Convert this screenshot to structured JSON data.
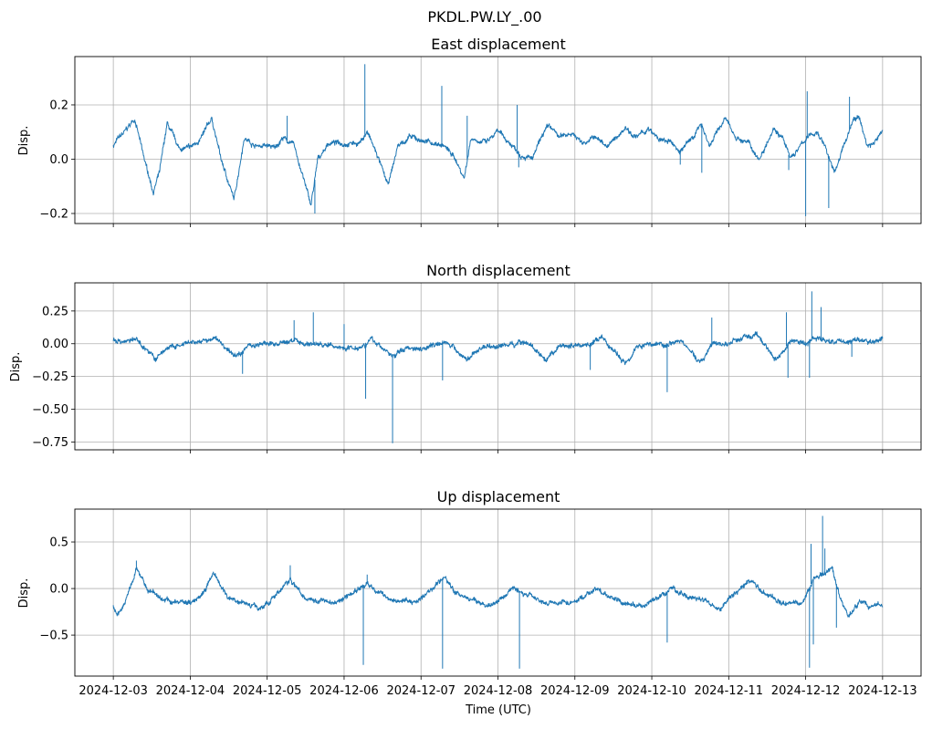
{
  "chart_data": [
    {
      "type": "line",
      "suptitle": "PKDL.PW.LY_.00",
      "title": "East displacement",
      "ylabel": "Disp.",
      "xlabel": "",
      "x_unit": "days since 2024-12-03 00:00 UTC",
      "xlim": [
        -0.5,
        10.5
      ],
      "ylim": [
        -0.237,
        0.378
      ],
      "yticks": [
        -0.2,
        0.0,
        0.2
      ],
      "ytick_labels": [
        "−0.2",
        "0.0",
        "0.2"
      ],
      "grid": true,
      "color": "#1f77b4",
      "points": [
        [
          0,
          0.05
        ],
        [
          0.05,
          0.07
        ],
        [
          0.15,
          0.1
        ],
        [
          0.28,
          0.15
        ],
        [
          0.4,
          0.0
        ],
        [
          0.52,
          -0.12
        ],
        [
          0.6,
          -0.05
        ],
        [
          0.7,
          0.13
        ],
        [
          0.85,
          0.04
        ],
        [
          1.0,
          0.04
        ],
        [
          1.15,
          0.08
        ],
        [
          1.28,
          0.15
        ],
        [
          1.4,
          0.0
        ],
        [
          1.57,
          -0.15
        ],
        [
          1.7,
          0.08
        ],
        [
          1.85,
          0.05
        ],
        [
          2.0,
          0.05
        ],
        [
          2.1,
          0.04
        ],
        [
          2.2,
          0.08
        ],
        [
          2.35,
          0.05
        ],
        [
          2.57,
          -0.17
        ],
        [
          2.66,
          0.0
        ],
        [
          2.8,
          0.06
        ],
        [
          3.0,
          0.06
        ],
        [
          3.2,
          0.06
        ],
        [
          3.3,
          0.1
        ],
        [
          3.45,
          0.0
        ],
        [
          3.57,
          -0.1
        ],
        [
          3.7,
          0.05
        ],
        [
          3.85,
          0.08
        ],
        [
          4.0,
          0.07
        ],
        [
          4.15,
          0.06
        ],
        [
          4.3,
          0.05
        ],
        [
          4.45,
          0.0
        ],
        [
          4.56,
          -0.07
        ],
        [
          4.65,
          0.08
        ],
        [
          4.85,
          0.06
        ],
        [
          5.0,
          0.1
        ],
        [
          5.15,
          0.06
        ],
        [
          5.3,
          0.02
        ],
        [
          5.45,
          0.0
        ],
        [
          5.6,
          0.1
        ],
        [
          5.67,
          0.12
        ],
        [
          5.8,
          0.08
        ],
        [
          5.95,
          0.1
        ],
        [
          6.1,
          0.06
        ],
        [
          6.25,
          0.08
        ],
        [
          6.43,
          0.05
        ],
        [
          6.55,
          0.08
        ],
        [
          6.66,
          0.12
        ],
        [
          6.8,
          0.08
        ],
        [
          6.95,
          0.11
        ],
        [
          7.1,
          0.07
        ],
        [
          7.25,
          0.06
        ],
        [
          7.37,
          0.03
        ],
        [
          7.5,
          0.07
        ],
        [
          7.65,
          0.13
        ],
        [
          7.75,
          0.05
        ],
        [
          7.95,
          0.15
        ],
        [
          8.1,
          0.08
        ],
        [
          8.25,
          0.06
        ],
        [
          8.4,
          0.0
        ],
        [
          8.58,
          0.12
        ],
        [
          8.7,
          0.08
        ],
        [
          8.8,
          0.0
        ],
        [
          9.02,
          0.08
        ],
        [
          9.15,
          0.1
        ],
        [
          9.25,
          0.05
        ],
        [
          9.37,
          -0.05
        ],
        [
          9.5,
          0.05
        ],
        [
          9.62,
          0.15
        ],
        [
          9.7,
          0.15
        ],
        [
          9.8,
          0.05
        ],
        [
          9.9,
          0.06
        ],
        [
          10.0,
          0.11
        ]
      ],
      "spikes": [
        [
          2.26,
          0.16
        ],
        [
          2.62,
          -0.2
        ],
        [
          3.27,
          0.35
        ],
        [
          4.27,
          0.27
        ],
        [
          4.6,
          0.16
        ],
        [
          5.25,
          0.2
        ],
        [
          5.27,
          -0.03
        ],
        [
          7.37,
          -0.02
        ],
        [
          7.65,
          -0.05
        ],
        [
          8.78,
          -0.04
        ],
        [
          9.0,
          -0.21
        ],
        [
          9.02,
          0.25
        ],
        [
          9.3,
          -0.18
        ],
        [
          9.57,
          0.23
        ]
      ]
    },
    {
      "type": "line",
      "title": "North displacement",
      "ylabel": "Disp.",
      "xlabel": "",
      "x_unit": "days since 2024-12-03 00:00 UTC",
      "xlim": [
        -0.5,
        10.5
      ],
      "ylim": [
        -0.81,
        0.465
      ],
      "yticks": [
        -0.75,
        -0.5,
        -0.25,
        0.0,
        0.25
      ],
      "ytick_labels": [
        "−0.75",
        "−0.50",
        "−0.25",
        "0.00",
        "0.25"
      ],
      "grid": true,
      "color": "#1f77b4",
      "points": [
        [
          0,
          0.03
        ],
        [
          0.15,
          0.02
        ],
        [
          0.3,
          0.03
        ],
        [
          0.45,
          -0.05
        ],
        [
          0.55,
          -0.12
        ],
        [
          0.7,
          -0.03
        ],
        [
          0.85,
          -0.02
        ],
        [
          1.0,
          0.0
        ],
        [
          1.2,
          0.02
        ],
        [
          1.35,
          0.04
        ],
        [
          1.5,
          -0.06
        ],
        [
          1.6,
          -0.1
        ],
        [
          1.75,
          -0.01
        ],
        [
          2.0,
          0.0
        ],
        [
          2.2,
          0.0
        ],
        [
          2.35,
          0.03
        ],
        [
          2.5,
          0.0
        ],
        [
          2.65,
          0.0
        ],
        [
          2.85,
          -0.02
        ],
        [
          3.0,
          -0.03
        ],
        [
          3.2,
          -0.02
        ],
        [
          3.35,
          0.03
        ],
        [
          3.5,
          -0.03
        ],
        [
          3.63,
          -0.1
        ],
        [
          3.8,
          -0.03
        ],
        [
          4.0,
          -0.03
        ],
        [
          4.2,
          0.0
        ],
        [
          4.3,
          0.03
        ],
        [
          4.45,
          -0.05
        ],
        [
          4.6,
          -0.12
        ],
        [
          4.8,
          -0.02
        ],
        [
          5.0,
          -0.02
        ],
        [
          5.2,
          0.0
        ],
        [
          5.35,
          0.02
        ],
        [
          5.5,
          -0.05
        ],
        [
          5.62,
          -0.15
        ],
        [
          5.8,
          -0.02
        ],
        [
          6.0,
          -0.01
        ],
        [
          6.2,
          0.0
        ],
        [
          6.35,
          0.04
        ],
        [
          6.5,
          -0.05
        ],
        [
          6.65,
          -0.15
        ],
        [
          6.8,
          -0.02
        ],
        [
          7.0,
          0.0
        ],
        [
          7.2,
          0.0
        ],
        [
          7.35,
          0.03
        ],
        [
          7.5,
          -0.05
        ],
        [
          7.62,
          -0.15
        ],
        [
          7.8,
          0.0
        ],
        [
          8.0,
          0.0
        ],
        [
          8.2,
          0.05
        ],
        [
          8.35,
          0.06
        ],
        [
          8.5,
          -0.03
        ],
        [
          8.62,
          -0.12
        ],
        [
          8.8,
          0.02
        ],
        [
          9.0,
          0.0
        ],
        [
          9.1,
          0.05
        ],
        [
          9.3,
          0.02
        ],
        [
          9.5,
          0.02
        ],
        [
          9.7,
          0.03
        ],
        [
          9.85,
          0.0
        ],
        [
          10.0,
          0.05
        ]
      ],
      "spikes": [
        [
          1.68,
          -0.23
        ],
        [
          2.35,
          0.18
        ],
        [
          2.6,
          0.24
        ],
        [
          3.0,
          0.15
        ],
        [
          3.28,
          -0.42
        ],
        [
          3.63,
          -0.76
        ],
        [
          4.28,
          -0.28
        ],
        [
          6.2,
          -0.2
        ],
        [
          7.2,
          -0.37
        ],
        [
          7.78,
          0.2
        ],
        [
          8.75,
          0.24
        ],
        [
          8.77,
          -0.26
        ],
        [
          9.05,
          -0.26
        ],
        [
          9.08,
          0.4
        ],
        [
          9.2,
          0.28
        ],
        [
          9.6,
          -0.1
        ]
      ]
    },
    {
      "type": "line",
      "title": "Up displacement",
      "ylabel": "Disp.",
      "xlabel": "Time (UTC)",
      "x_unit": "days since 2024-12-03 00:00 UTC",
      "xlim": [
        -0.5,
        10.5
      ],
      "ylim": [
        -0.94,
        0.853
      ],
      "yticks": [
        -0.5,
        0.0,
        0.5
      ],
      "ytick_labels": [
        "−0.5",
        "0.0",
        "0.5"
      ],
      "xtick_labels": [
        "2024-12-03",
        "2024-12-04",
        "2024-12-05",
        "2024-12-06",
        "2024-12-07",
        "2024-12-08",
        "2024-12-09",
        "2024-12-10",
        "2024-12-11",
        "2024-12-12",
        "2024-12-13"
      ],
      "grid": true,
      "color": "#1f77b4",
      "points": [
        [
          0,
          -0.2
        ],
        [
          0.05,
          -0.3
        ],
        [
          0.15,
          -0.15
        ],
        [
          0.3,
          0.2
        ],
        [
          0.45,
          0.0
        ],
        [
          0.6,
          -0.1
        ],
        [
          0.8,
          -0.15
        ],
        [
          1.0,
          -0.15
        ],
        [
          1.15,
          -0.05
        ],
        [
          1.3,
          0.15
        ],
        [
          1.5,
          -0.1
        ],
        [
          1.7,
          -0.15
        ],
        [
          1.9,
          -0.2
        ],
        [
          2.1,
          -0.1
        ],
        [
          2.3,
          0.1
        ],
        [
          2.5,
          -0.1
        ],
        [
          2.7,
          -0.12
        ],
        [
          2.9,
          -0.15
        ],
        [
          3.1,
          -0.05
        ],
        [
          3.3,
          0.05
        ],
        [
          3.45,
          -0.05
        ],
        [
          3.6,
          -0.1
        ],
        [
          3.9,
          -0.15
        ],
        [
          4.1,
          -0.05
        ],
        [
          4.3,
          0.12
        ],
        [
          4.45,
          -0.05
        ],
        [
          4.6,
          -0.1
        ],
        [
          4.9,
          -0.2
        ],
        [
          5.05,
          -0.1
        ],
        [
          5.2,
          0.0
        ],
        [
          5.35,
          -0.05
        ],
        [
          5.5,
          -0.1
        ],
        [
          5.7,
          -0.15
        ],
        [
          5.9,
          -0.15
        ],
        [
          6.1,
          -0.1
        ],
        [
          6.3,
          0.0
        ],
        [
          6.45,
          -0.1
        ],
        [
          6.6,
          -0.15
        ],
        [
          6.9,
          -0.2
        ],
        [
          7.1,
          -0.1
        ],
        [
          7.25,
          0.0
        ],
        [
          7.4,
          -0.05
        ],
        [
          7.5,
          -0.1
        ],
        [
          7.7,
          -0.15
        ],
        [
          7.9,
          -0.2
        ],
        [
          8.1,
          -0.05
        ],
        [
          8.3,
          0.1
        ],
        [
          8.45,
          -0.05
        ],
        [
          8.6,
          -0.1
        ],
        [
          8.8,
          -0.15
        ],
        [
          8.95,
          -0.15
        ],
        [
          9.1,
          0.1
        ],
        [
          9.25,
          0.15
        ],
        [
          9.35,
          0.2
        ],
        [
          9.45,
          -0.1
        ],
        [
          9.55,
          -0.3
        ],
        [
          9.7,
          -0.15
        ],
        [
          9.85,
          -0.2
        ],
        [
          10.0,
          -0.18
        ]
      ],
      "spikes": [
        [
          0.3,
          0.3
        ],
        [
          2.3,
          0.25
        ],
        [
          3.25,
          -0.82
        ],
        [
          3.3,
          0.15
        ],
        [
          4.28,
          -0.86
        ],
        [
          5.28,
          -0.86
        ],
        [
          7.2,
          -0.58
        ],
        [
          9.05,
          -0.85
        ],
        [
          9.07,
          0.48
        ],
        [
          9.1,
          -0.6
        ],
        [
          9.22,
          0.78
        ],
        [
          9.25,
          0.43
        ],
        [
          9.4,
          -0.42
        ]
      ]
    }
  ]
}
